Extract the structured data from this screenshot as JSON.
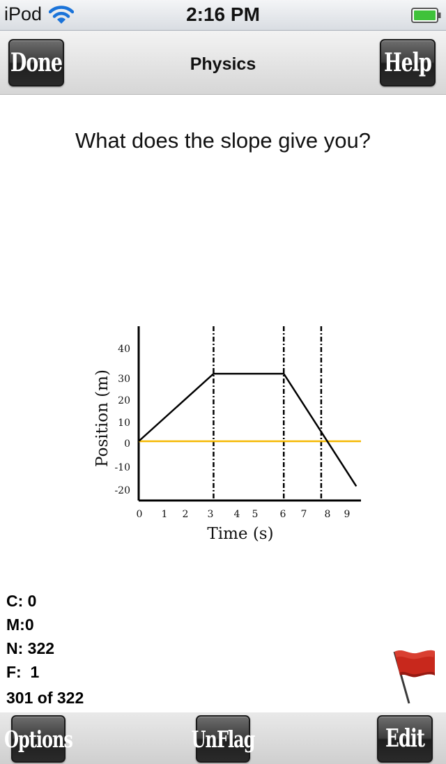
{
  "status_bar": {
    "carrier": "iPod",
    "time": "2:16 PM",
    "wifi_icon": "wifi-icon",
    "battery_icon": "battery-full-icon",
    "battery_color": "#3fc23a"
  },
  "nav": {
    "title": "Physics",
    "left_button": "Done",
    "right_button": "Help"
  },
  "question": "What does the slope give you?",
  "chart_data": {
    "type": "line",
    "xlabel": "Time (s)",
    "ylabel": "Position (m)",
    "x_ticks": [
      "0",
      "1",
      "2",
      "3",
      "4",
      "5",
      "6",
      "7",
      "8",
      "9"
    ],
    "y_ticks": [
      "40",
      "30",
      "20",
      "10",
      "0",
      "-10",
      "-20"
    ],
    "xlim": [
      0,
      9.5
    ],
    "ylim": [
      -25,
      45
    ],
    "series": [
      {
        "x": [
          0,
          3.2,
          6.2,
          9.3
        ],
        "y": [
          0,
          30,
          30,
          -20
        ],
        "color": "#000000"
      }
    ],
    "reference_line": {
      "y": 0,
      "color": "#f5b800"
    },
    "vertical_dashed_lines": [
      3.2,
      6.2,
      7.8
    ],
    "grid": false
  },
  "stats": {
    "c_label": "C:",
    "c_value": "0",
    "m_label": "M:",
    "m_value": "0",
    "n_label": "N:",
    "n_value": "322",
    "f_label": "F:",
    "f_value": "1",
    "progress": "301 of 322"
  },
  "flag_icon": "red-flag-icon",
  "toolbar": {
    "options": "Options",
    "unflag": "UnFlag",
    "edit": "Edit"
  }
}
